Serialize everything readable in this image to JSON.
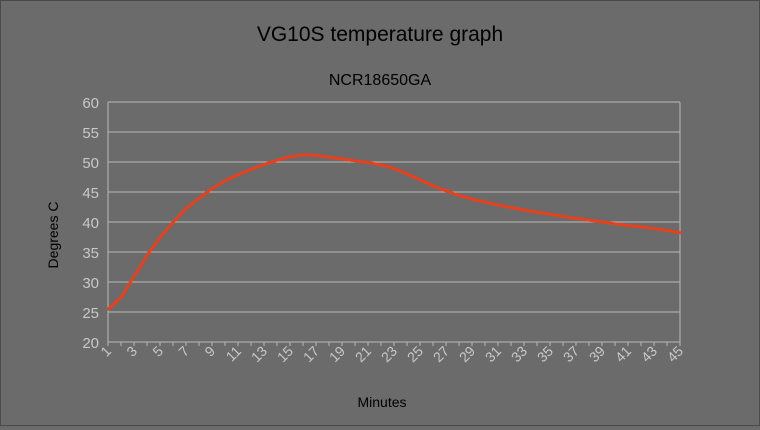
{
  "chart_data": {
    "type": "line",
    "title": "VG10S temperature graph",
    "subtitle": "NCR18650GA",
    "xlabel": "Minutes",
    "ylabel": "Degrees C",
    "ylim": [
      20,
      60
    ],
    "yticks": [
      20,
      25,
      30,
      35,
      40,
      45,
      50,
      55,
      60
    ],
    "xlim": [
      1,
      45
    ],
    "xticks": [
      1,
      3,
      5,
      7,
      9,
      11,
      13,
      15,
      17,
      19,
      21,
      23,
      25,
      27,
      29,
      31,
      33,
      35,
      37,
      39,
      41,
      43,
      45
    ],
    "grid": true,
    "legend": "none",
    "series": [
      {
        "color": "#e8401c",
        "x": [
          1,
          2,
          3,
          4,
          5,
          6,
          7,
          8,
          9,
          10,
          11,
          12,
          13,
          14,
          15,
          16,
          17,
          18,
          19,
          20,
          21,
          22,
          23,
          24,
          25,
          26,
          27,
          28,
          29,
          30,
          31,
          32,
          33,
          34,
          35,
          36,
          37,
          38,
          39,
          40,
          41,
          42,
          43,
          44,
          45
        ],
        "y": [
          25.5,
          27.5,
          31,
          34.5,
          37.5,
          40,
          42.3,
          44,
          45.6,
          46.9,
          47.9,
          48.8,
          49.6,
          50.3,
          50.9,
          51.2,
          51.1,
          50.8,
          50.5,
          50.2,
          49.9,
          49.5,
          48.9,
          48.0,
          47.0,
          46.0,
          45.2,
          44.4,
          43.8,
          43.3,
          42.8,
          42.4,
          42.0,
          41.6,
          41.3,
          40.9,
          40.6,
          40.3,
          40.0,
          39.7,
          39.4,
          39.2,
          38.9,
          38.6,
          38.2
        ]
      }
    ]
  }
}
